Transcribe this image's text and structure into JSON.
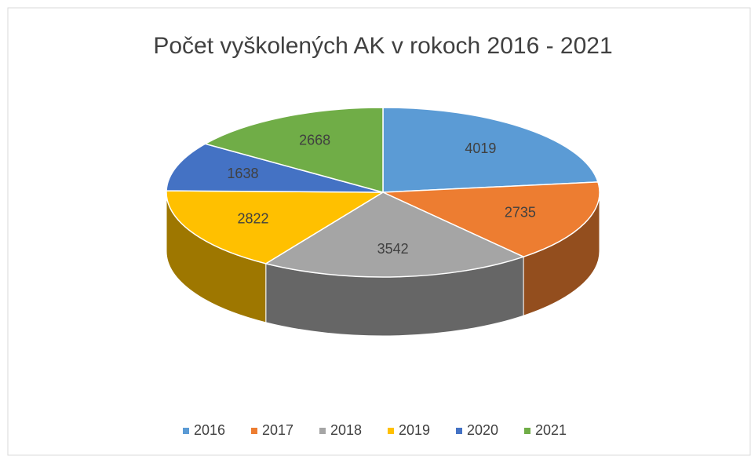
{
  "chart_data": {
    "type": "pie",
    "title": "Počet vyškolených AK v rokoch 2016 - 2021",
    "categories": [
      "2016",
      "2017",
      "2018",
      "2019",
      "2020",
      "2021"
    ],
    "values": [
      4019,
      2735,
      3542,
      2822,
      1638,
      2668
    ],
    "colors": [
      "#5b9bd5",
      "#ed7d31",
      "#a5a5a5",
      "#ffc000",
      "#4472c4",
      "#70ad47"
    ],
    "legend": "bottom"
  }
}
